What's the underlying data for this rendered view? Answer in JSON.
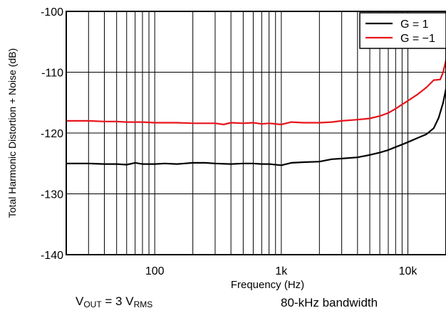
{
  "chart_data": {
    "type": "line",
    "xscale": "log",
    "xlim": [
      20,
      20000
    ],
    "ylim": [
      -140,
      -100
    ],
    "xlabel": "Frequency (Hz)",
    "ylabel": "Total Harmonic Distortion + Noise (dB)",
    "x_ticks": [
      {
        "value": 100,
        "label": "100"
      },
      {
        "value": 1000,
        "label": "1k"
      },
      {
        "value": 10000,
        "label": "10k"
      }
    ],
    "y_ticks": [
      {
        "value": -100,
        "label": "-100"
      },
      {
        "value": -110,
        "label": "-110"
      },
      {
        "value": -120,
        "label": "-120"
      },
      {
        "value": -130,
        "label": "-130"
      },
      {
        "value": -140,
        "label": "-140"
      }
    ],
    "grid": true,
    "legend_position": "top-right",
    "series": [
      {
        "name": "G = 1",
        "color": "#000000",
        "points": [
          [
            20,
            -125.0
          ],
          [
            30,
            -125.0
          ],
          [
            40,
            -125.1
          ],
          [
            50,
            -125.1
          ],
          [
            60,
            -125.2
          ],
          [
            70,
            -124.9
          ],
          [
            80,
            -125.1
          ],
          [
            100,
            -125.1
          ],
          [
            120,
            -125.0
          ],
          [
            150,
            -125.1
          ],
          [
            200,
            -124.9
          ],
          [
            250,
            -124.9
          ],
          [
            300,
            -125.0
          ],
          [
            400,
            -125.1
          ],
          [
            500,
            -125.0
          ],
          [
            600,
            -125.0
          ],
          [
            700,
            -125.1
          ],
          [
            800,
            -125.1
          ],
          [
            1000,
            -125.3
          ],
          [
            1200,
            -124.9
          ],
          [
            1500,
            -124.8
          ],
          [
            2000,
            -124.7
          ],
          [
            2500,
            -124.3
          ],
          [
            3000,
            -124.2
          ],
          [
            4000,
            -124.0
          ],
          [
            5000,
            -123.6
          ],
          [
            6000,
            -123.2
          ],
          [
            7000,
            -122.8
          ],
          [
            8000,
            -122.3
          ],
          [
            9000,
            -121.9
          ],
          [
            10000,
            -121.5
          ],
          [
            12000,
            -120.8
          ],
          [
            14000,
            -120.2
          ],
          [
            16000,
            -119.2
          ],
          [
            17500,
            -117.5
          ],
          [
            19000,
            -115.0
          ],
          [
            20000,
            -112.7
          ]
        ]
      },
      {
        "name": "G = −1",
        "color": "#e8141c",
        "points": [
          [
            20,
            -118.0
          ],
          [
            30,
            -118.0
          ],
          [
            40,
            -118.1
          ],
          [
            50,
            -118.1
          ],
          [
            60,
            -118.2
          ],
          [
            70,
            -118.2
          ],
          [
            80,
            -118.2
          ],
          [
            100,
            -118.3
          ],
          [
            120,
            -118.3
          ],
          [
            150,
            -118.3
          ],
          [
            200,
            -118.4
          ],
          [
            250,
            -118.4
          ],
          [
            300,
            -118.4
          ],
          [
            350,
            -118.6
          ],
          [
            400,
            -118.3
          ],
          [
            500,
            -118.4
          ],
          [
            600,
            -118.3
          ],
          [
            700,
            -118.5
          ],
          [
            800,
            -118.4
          ],
          [
            1000,
            -118.6
          ],
          [
            1200,
            -118.2
          ],
          [
            1500,
            -118.3
          ],
          [
            2000,
            -118.3
          ],
          [
            2500,
            -118.2
          ],
          [
            3000,
            -118.0
          ],
          [
            4000,
            -117.8
          ],
          [
            5000,
            -117.6
          ],
          [
            6000,
            -117.2
          ],
          [
            7000,
            -116.7
          ],
          [
            8000,
            -116.0
          ],
          [
            9000,
            -115.3
          ],
          [
            10000,
            -114.7
          ],
          [
            12000,
            -113.6
          ],
          [
            14000,
            -112.5
          ],
          [
            16000,
            -111.3
          ],
          [
            18000,
            -111.2
          ],
          [
            19000,
            -110.0
          ],
          [
            20000,
            -108.0
          ]
        ]
      }
    ]
  },
  "footer": {
    "vout_prefix": "V",
    "vout_sub": "OUT",
    "vout_mid": " = 3 V",
    "vout_unit_sub": "RMS",
    "bandwidth": "80-kHz bandwidth"
  }
}
